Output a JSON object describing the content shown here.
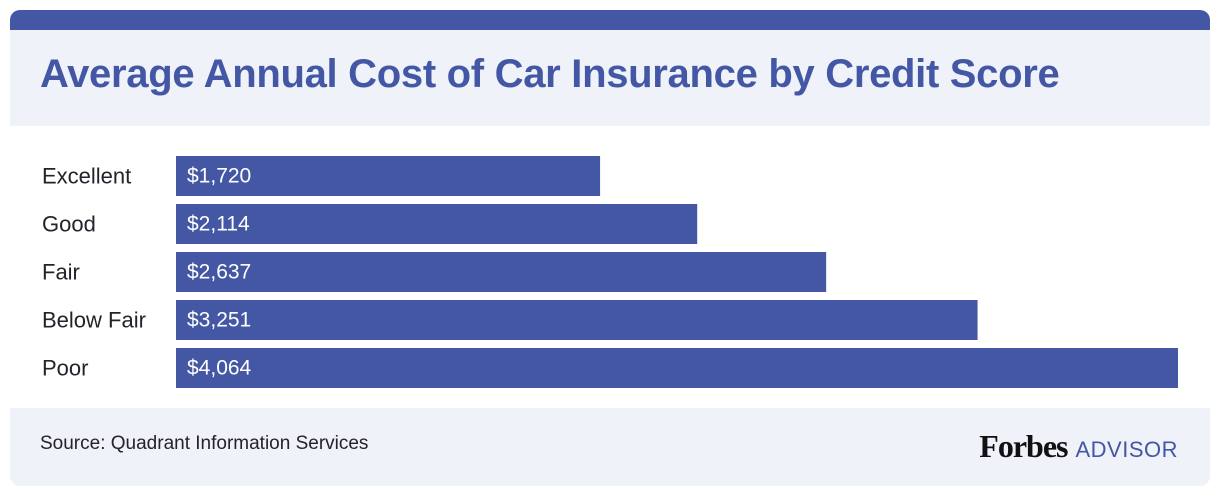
{
  "header": {
    "title": "Average Annual Cost of Car Insurance by Credit Score"
  },
  "footer": {
    "source": "Source: Quadrant Information Services",
    "logo_primary": "Forbes",
    "logo_secondary": "ADVISOR"
  },
  "colors": {
    "accent": "#4457a4",
    "panel_bg": "#eff2f8",
    "label_text": "#23232b",
    "bar_label_text": "#ffffff",
    "logo_secondary": "#4457a4"
  },
  "chart_data": {
    "type": "bar",
    "orientation": "horizontal",
    "categories": [
      "Excellent",
      "Good",
      "Fair",
      "Below Fair",
      "Poor"
    ],
    "values": [
      1720,
      2114,
      2637,
      3251,
      4064
    ],
    "value_labels": [
      "$1,720",
      "$2,114",
      "$2,637",
      "$3,251",
      "$4,064"
    ],
    "title": "Average Annual Cost of Car Insurance by Credit Score",
    "xlabel": "",
    "ylabel": "",
    "xlim": [
      0,
      4064
    ],
    "grid": false,
    "legend": "none"
  }
}
